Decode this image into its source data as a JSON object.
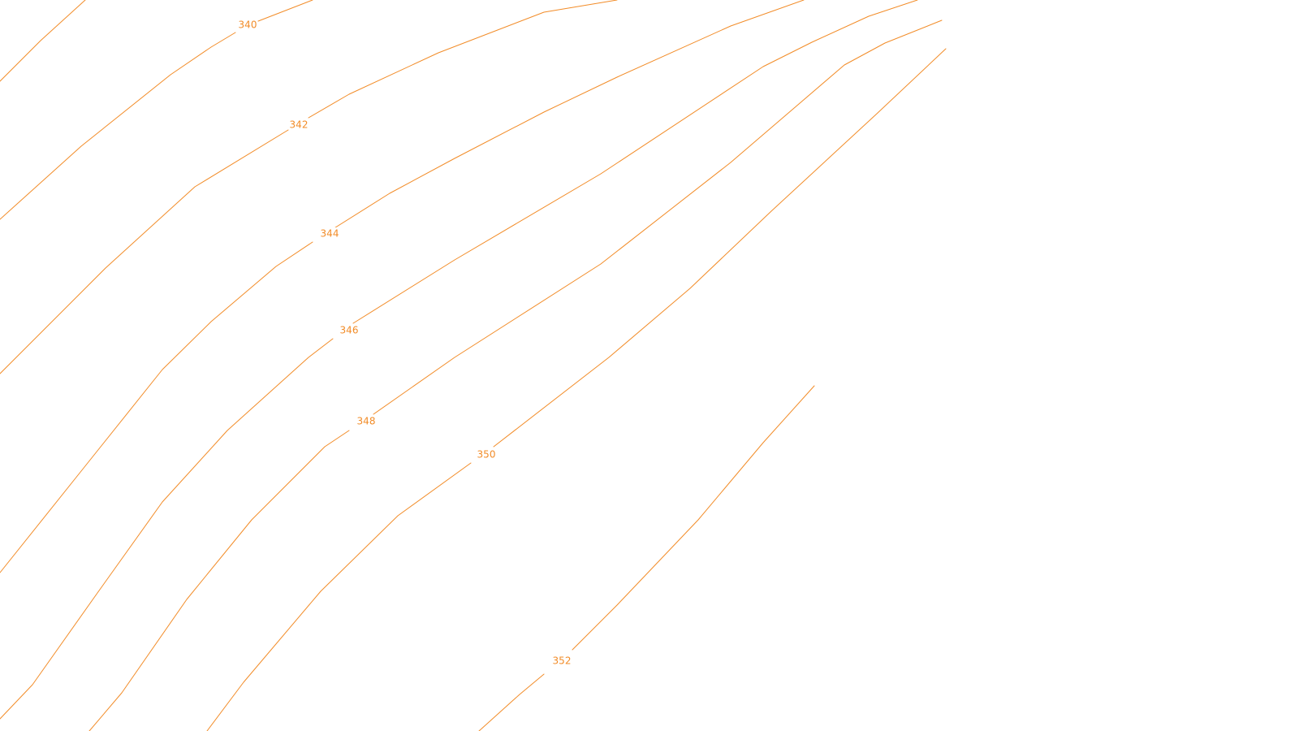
{
  "map": {
    "background_color": "#ffffff",
    "contour_color": "#f28c28",
    "label_color": "#f28c28",
    "contour_labels": [
      "340",
      "342",
      "344",
      "346",
      "348",
      "350",
      "352"
    ]
  }
}
